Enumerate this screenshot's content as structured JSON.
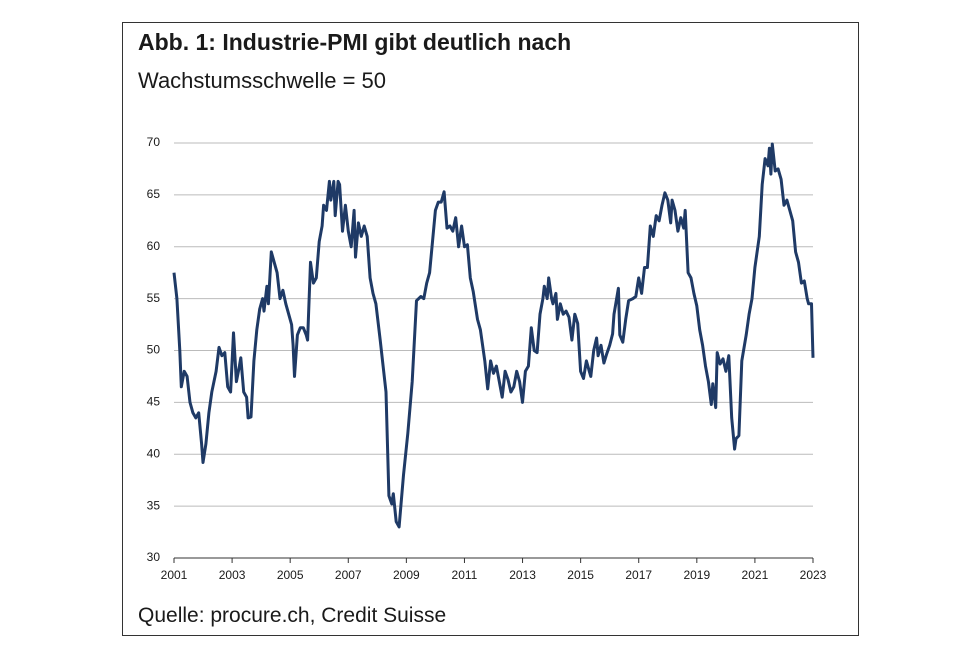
{
  "chart_data": {
    "type": "line",
    "title": "Abb. 1: Industrie-PMI gibt deutlich nach",
    "subtitle": "Wachstumsschwelle = 50",
    "source": "Quelle: procure.ch, Credit Suisse",
    "color": "#1f3a66",
    "grid": true,
    "xlim": [
      2001,
      2023
    ],
    "xticks": [
      2001,
      2003,
      2005,
      2007,
      2009,
      2011,
      2013,
      2015,
      2017,
      2019,
      2021,
      2023
    ],
    "ylim": [
      30,
      70
    ],
    "yticks": [
      30,
      35,
      40,
      45,
      50,
      55,
      60,
      65,
      70
    ],
    "x": [
      2001.0,
      2001.1,
      2001.2,
      2001.25,
      2001.35,
      2001.45,
      2001.55,
      2001.65,
      2001.75,
      2001.85,
      2001.95,
      2002.0,
      2002.1,
      2002.2,
      2002.3,
      2002.45,
      2002.55,
      2002.65,
      2002.75,
      2002.85,
      2002.95,
      2003.05,
      2003.15,
      2003.25,
      2003.3,
      2003.4,
      2003.5,
      2003.55,
      2003.65,
      2003.75,
      2003.85,
      2003.95,
      2004.05,
      2004.1,
      2004.2,
      2004.25,
      2004.35,
      2004.45,
      2004.55,
      2004.65,
      2004.75,
      2004.85,
      2004.95,
      2005.05,
      2005.1,
      2005.15,
      2005.25,
      2005.35,
      2005.45,
      2005.55,
      2005.6,
      2005.7,
      2005.8,
      2005.9,
      2006.0,
      2006.1,
      2006.15,
      2006.25,
      2006.35,
      2006.4,
      2006.5,
      2006.55,
      2006.65,
      2006.7,
      2006.8,
      2006.9,
      2007.0,
      2007.1,
      2007.2,
      2007.25,
      2007.35,
      2007.45,
      2007.55,
      2007.65,
      2007.75,
      2007.85,
      2007.95,
      2008.1,
      2008.3,
      2008.4,
      2008.5,
      2008.55,
      2008.65,
      2008.75,
      2008.9,
      2009.05,
      2009.2,
      2009.35,
      2009.5,
      2009.6,
      2009.7,
      2009.8,
      2009.9,
      2010.0,
      2010.1,
      2010.2,
      2010.3,
      2010.4,
      2010.5,
      2010.6,
      2010.7,
      2010.8,
      2010.9,
      2011.0,
      2011.1,
      2011.2,
      2011.3,
      2011.45,
      2011.55,
      2011.7,
      2011.8,
      2011.9,
      2012.0,
      2012.1,
      2012.2,
      2012.3,
      2012.4,
      2012.5,
      2012.6,
      2012.7,
      2012.8,
      2012.9,
      2013.0,
      2013.1,
      2013.2,
      2013.3,
      2013.4,
      2013.5,
      2013.6,
      2013.7,
      2013.75,
      2013.85,
      2013.9,
      2014.0,
      2014.05,
      2014.15,
      2014.2,
      2014.3,
      2014.4,
      2014.5,
      2014.6,
      2014.7,
      2014.8,
      2014.9,
      2015.0,
      2015.1,
      2015.2,
      2015.3,
      2015.35,
      2015.45,
      2015.55,
      2015.6,
      2015.7,
      2015.8,
      2015.9,
      2016.0,
      2016.1,
      2016.15,
      2016.3,
      2016.35,
      2016.45,
      2016.55,
      2016.65,
      2016.8,
      2016.9,
      2017.0,
      2017.1,
      2017.2,
      2017.3,
      2017.4,
      2017.5,
      2017.6,
      2017.7,
      2017.8,
      2017.9,
      2018.0,
      2018.1,
      2018.15,
      2018.25,
      2018.35,
      2018.45,
      2018.55,
      2018.6,
      2018.7,
      2018.8,
      2018.9,
      2019.0,
      2019.1,
      2019.2,
      2019.3,
      2019.4,
      2019.5,
      2019.55,
      2019.65,
      2019.7,
      2019.8,
      2019.9,
      2020.0,
      2020.1,
      2020.2,
      2020.3,
      2020.35,
      2020.45,
      2020.55,
      2020.7,
      2020.8,
      2020.9,
      2021.0,
      2021.15,
      2021.25,
      2021.35,
      2021.45,
      2021.5,
      2021.55,
      2021.6,
      2021.7,
      2021.8,
      2021.9,
      2022.0,
      2022.1,
      2022.2,
      2022.3,
      2022.4,
      2022.5,
      2022.6,
      2022.7,
      2022.8,
      2022.85,
      2022.95,
      2023.0
    ],
    "values": [
      57.5,
      55,
      50,
      46.5,
      48,
      47.5,
      45,
      44,
      43.5,
      44,
      41,
      39.2,
      41,
      44,
      46,
      48,
      50.3,
      49.5,
      49.8,
      46.5,
      46,
      51.7,
      47,
      48.5,
      49.3,
      46,
      45.5,
      43.5,
      43.6,
      49,
      52,
      54,
      55,
      53.8,
      56.2,
      54.5,
      59.5,
      58.5,
      57.5,
      55,
      55.8,
      54.5,
      53.5,
      52.5,
      50.5,
      47.5,
      51.5,
      52.2,
      52.2,
      51.5,
      51,
      58.5,
      56.5,
      57,
      60.5,
      62,
      64,
      63.5,
      66.3,
      64.5,
      66.3,
      63,
      66.3,
      66,
      61.5,
      64,
      61.5,
      60,
      63.5,
      59,
      62.3,
      61,
      62,
      61,
      57,
      55.5,
      54.5,
      51,
      46,
      36,
      35.2,
      36.2,
      33.5,
      33,
      38,
      42,
      47,
      54.8,
      55.2,
      55,
      56.5,
      57.5,
      60.5,
      63.5,
      64.3,
      64.3,
      65.3,
      61.8,
      62,
      61.5,
      62.8,
      60,
      62,
      60,
      60.2,
      57,
      55.7,
      53,
      52,
      49,
      46.3,
      49,
      47.8,
      48.5,
      47,
      45.5,
      48,
      47.2,
      46,
      46.5,
      48,
      47,
      45,
      48,
      48.5,
      52.2,
      50,
      49.8,
      53.5,
      55,
      56.2,
      55,
      57,
      55,
      54.5,
      55.5,
      53,
      54.5,
      53.5,
      53.8,
      53.2,
      51,
      53.5,
      52.6,
      48,
      47.3,
      49,
      48,
      47.5,
      50,
      51.2,
      49.5,
      50.5,
      48.8,
      49.7,
      50.5,
      51.6,
      53.5,
      56,
      51.5,
      50.8,
      53,
      54.8,
      55,
      55.2,
      57,
      55.5,
      58,
      58,
      62,
      61,
      63,
      62.5,
      64,
      65.2,
      64.5,
      62.3,
      64.5,
      63.5,
      61.5,
      62.8,
      61.8,
      63.5,
      57.5,
      57,
      55.5,
      54.3,
      52,
      50.5,
      48.5,
      47,
      44.8,
      46.8,
      44.5,
      49.8,
      48.7,
      49.2,
      48,
      49.5,
      43.5,
      40.5,
      41.5,
      41.8,
      49,
      51.5,
      53.5,
      55,
      58,
      61,
      66,
      68.5,
      67.8,
      69.5,
      67,
      69.9,
      67.3,
      67.5,
      66.5,
      64,
      64.5,
      63.5,
      62.5,
      59.5,
      58.5,
      56.5,
      56.7,
      55,
      54.5,
      54.5,
      49.3
    ]
  }
}
